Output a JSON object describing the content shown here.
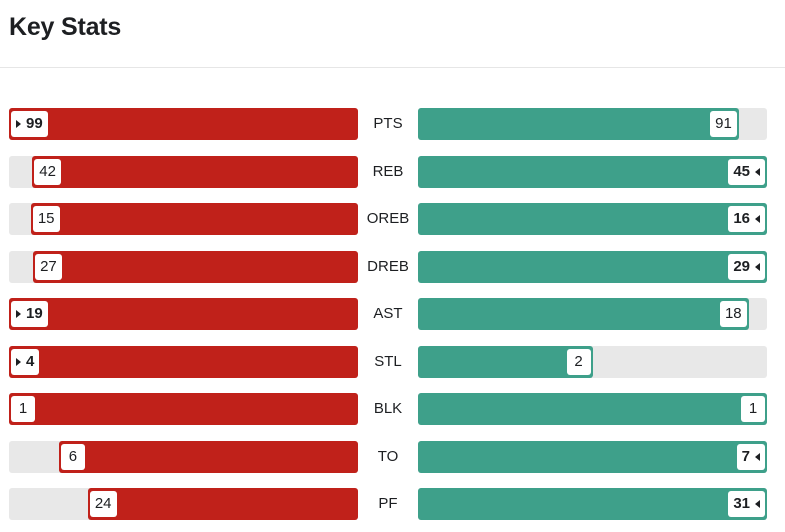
{
  "title": "Key Stats",
  "colors": {
    "away": "#c0211a",
    "home": "#3ea08a",
    "track": "#e8e8e8"
  },
  "stats": [
    {
      "label": "PTS",
      "away": 99,
      "home": 91
    },
    {
      "label": "REB",
      "away": 42,
      "home": 45
    },
    {
      "label": "OREB",
      "away": 15,
      "home": 16
    },
    {
      "label": "DREB",
      "away": 27,
      "home": 29
    },
    {
      "label": "AST",
      "away": 19,
      "home": 18
    },
    {
      "label": "STL",
      "away": 4,
      "home": 2
    },
    {
      "label": "BLK",
      "away": 1,
      "home": 1
    },
    {
      "label": "TO",
      "away": 6,
      "home": 7
    },
    {
      "label": "PF",
      "away": 24,
      "home": 31
    }
  ]
}
